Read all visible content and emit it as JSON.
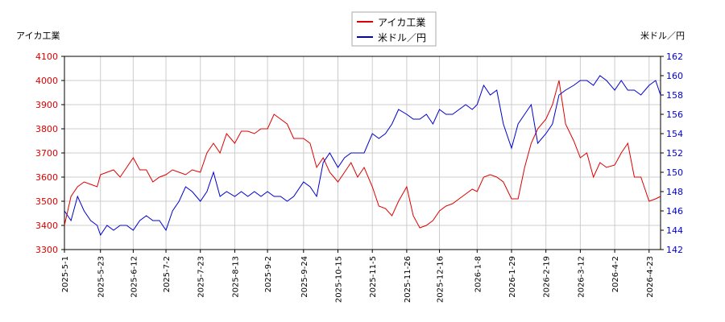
{
  "chart_data": {
    "type": "line",
    "y_label": "アイカ工業",
    "y2_label": "米ドル／円",
    "x": [
      "2025-5-1",
      "2025-5-5",
      "2025-5-9",
      "2025-5-13",
      "2025-5-17",
      "2025-5-21",
      "2025-5-23",
      "2025-5-27",
      "2025-5-31",
      "2025-6-4",
      "2025-6-8",
      "2025-6-12",
      "2025-6-16",
      "2025-6-20",
      "2025-6-24",
      "2025-6-28",
      "2025-7-2",
      "2025-7-6",
      "2025-7-10",
      "2025-7-14",
      "2025-7-18",
      "2025-7-23",
      "2025-7-27",
      "2025-7-31",
      "2025-8-4",
      "2025-8-8",
      "2025-8-13",
      "2025-8-17",
      "2025-8-21",
      "2025-8-25",
      "2025-8-29",
      "2025-9-2",
      "2025-9-6",
      "2025-9-10",
      "2025-9-14",
      "2025-9-18",
      "2025-9-24",
      "2025-9-28",
      "2025-10-2",
      "2025-10-6",
      "2025-10-10",
      "2025-10-15",
      "2025-10-19",
      "2025-10-23",
      "2025-10-27",
      "2025-10-31",
      "2025-11-5",
      "2025-11-9",
      "2025-11-13",
      "2025-11-17",
      "2025-11-21",
      "2025-11-26",
      "2025-11-30",
      "2025-12-4",
      "2025-12-8",
      "2025-12-12",
      "2025-12-16",
      "2025-12-20",
      "2025-12-24",
      "2025-12-28",
      "2026-1-1",
      "2026-1-5",
      "2026-1-8",
      "2026-1-12",
      "2026-1-16",
      "2026-1-20",
      "2026-1-24",
      "2026-1-29",
      "2026-2-2",
      "2026-2-6",
      "2026-2-10",
      "2026-2-14",
      "2026-2-19",
      "2026-2-23",
      "2026-2-27",
      "2026-3-3",
      "2026-3-8",
      "2026-3-12",
      "2026-3-16",
      "2026-3-20",
      "2026-3-24",
      "2026-3-28",
      "2026-4-2",
      "2026-4-6",
      "2026-4-10",
      "2026-4-14",
      "2026-4-18",
      "2026-4-23",
      "2026-4-27",
      "2026-4-30"
    ],
    "series": [
      {
        "name": "アイカ工業",
        "color": "#dd0000",
        "values": [
          3400,
          3520,
          3560,
          3580,
          3570,
          3560,
          3610,
          3620,
          3630,
          3600,
          3640,
          3680,
          3630,
          3630,
          3580,
          3600,
          3610,
          3630,
          3620,
          3610,
          3630,
          3620,
          3700,
          3740,
          3700,
          3780,
          3740,
          3790,
          3790,
          3780,
          3800,
          3800,
          3860,
          3840,
          3820,
          3760,
          3760,
          3740,
          3640,
          3680,
          3620,
          3580,
          3620,
          3660,
          3600,
          3640,
          3560,
          3480,
          3470,
          3440,
          3500,
          3560,
          3440,
          3390,
          3400,
          3420,
          3460,
          3480,
          3490,
          3510,
          3530,
          3550,
          3540,
          3600,
          3610,
          3600,
          3580,
          3510,
          3510,
          3640,
          3740,
          3800,
          3840,
          3900,
          4000,
          3820,
          3750,
          3680,
          3700,
          3600,
          3660,
          3640,
          3650,
          3700,
          3740,
          3600,
          3600,
          3500,
          3510,
          3520
        ]
      },
      {
        "name": "米ドル／円",
        "color": "#0000cc",
        "axis": "y2",
        "values": [
          146,
          145,
          147.5,
          146,
          145,
          144.5,
          143.5,
          144.5,
          144,
          144.5,
          144.5,
          144,
          145,
          145.5,
          145,
          145,
          144,
          146,
          147,
          148.5,
          148,
          147,
          148,
          150,
          147.5,
          148,
          147.5,
          148,
          147.5,
          148,
          147.5,
          148,
          147.5,
          147.5,
          147,
          147.5,
          149,
          148.5,
          147.5,
          151,
          152,
          150.5,
          151.5,
          152,
          152,
          152,
          154,
          153.5,
          154,
          155,
          156.5,
          156,
          155.5,
          155.5,
          156,
          155,
          156.5,
          156,
          156,
          156.5,
          157,
          156.5,
          157,
          159,
          158,
          158.5,
          155,
          152.5,
          155,
          156,
          157,
          153,
          154,
          155,
          158,
          158.5,
          159,
          159.5,
          159.5,
          159,
          160,
          159.5,
          158.5,
          159.5,
          158.5,
          158.5,
          158,
          159,
          159.5,
          158
        ]
      }
    ],
    "xlim": [
      "2025-5-1",
      "2026-4-30"
    ],
    "xticks": [
      "2025-5-1",
      "2025-5-23",
      "2025-6-12",
      "2025-7-2",
      "2025-7-23",
      "2025-8-13",
      "2025-9-2",
      "2025-9-24",
      "2025-10-15",
      "2025-11-5",
      "2025-11-26",
      "2025-12-16",
      "2026-1-8",
      "2026-1-29",
      "2026-2-19",
      "2026-3-12",
      "2026-4-2",
      "2026-4-23"
    ],
    "ylim": [
      3300,
      4100
    ],
    "yticks": [
      3300,
      3400,
      3500,
      3600,
      3700,
      3800,
      3900,
      4000,
      4100
    ],
    "y2lim": [
      142,
      162
    ],
    "y2ticks": [
      142,
      144,
      146,
      148,
      150,
      152,
      154,
      156,
      158,
      160,
      162
    ],
    "grid": true,
    "legend": "top"
  }
}
